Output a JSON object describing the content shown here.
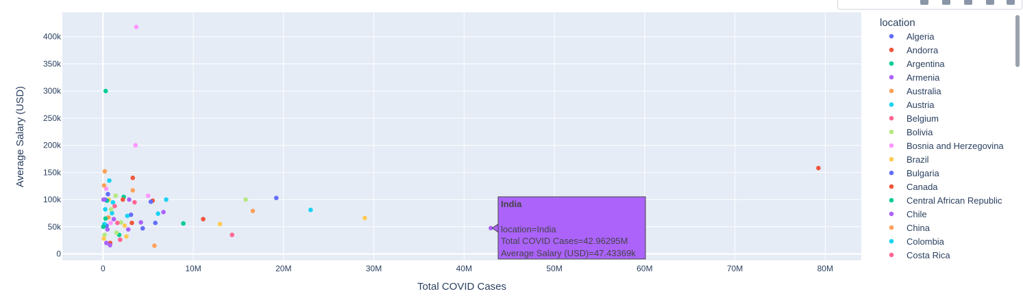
{
  "chart_data": {
    "type": "scatter",
    "xlabel": "Total COVID Cases",
    "ylabel": "Average Salary (USD)",
    "xlim": [
      -4500000,
      84000000
    ],
    "ylim": [
      -12000,
      445000
    ],
    "x_ticks": [
      0,
      10000000,
      20000000,
      30000000,
      40000000,
      50000000,
      60000000,
      70000000,
      80000000
    ],
    "x_tick_labels": [
      "0",
      "10M",
      "20M",
      "30M",
      "40M",
      "50M",
      "60M",
      "70M",
      "80M"
    ],
    "y_ticks": [
      0,
      50000,
      100000,
      150000,
      200000,
      250000,
      300000,
      350000,
      400000
    ],
    "y_tick_labels": [
      "0",
      "50k",
      "100k",
      "150k",
      "200k",
      "250k",
      "300k",
      "350k",
      "400k"
    ],
    "legend_title": "location",
    "legend": [
      {
        "name": "Algeria",
        "color": "#636EFA"
      },
      {
        "name": "Andorra",
        "color": "#EF553B"
      },
      {
        "name": "Argentina",
        "color": "#00CC96"
      },
      {
        "name": "Armenia",
        "color": "#AB63FA"
      },
      {
        "name": "Australia",
        "color": "#FFA15A"
      },
      {
        "name": "Austria",
        "color": "#19D3F3"
      },
      {
        "name": "Belgium",
        "color": "#FF6692"
      },
      {
        "name": "Bolivia",
        "color": "#B6E880"
      },
      {
        "name": "Bosnia and Herzegovina",
        "color": "#FF97FF"
      },
      {
        "name": "Brazil",
        "color": "#FECB52"
      },
      {
        "name": "Bulgaria",
        "color": "#636EFA"
      },
      {
        "name": "Canada",
        "color": "#EF553B"
      },
      {
        "name": "Central African Republic",
        "color": "#00CC96"
      },
      {
        "name": "Chile",
        "color": "#AB63FA"
      },
      {
        "name": "China",
        "color": "#FFA15A"
      },
      {
        "name": "Colombia",
        "color": "#19D3F3"
      },
      {
        "name": "Costa Rica",
        "color": "#FF6692"
      }
    ],
    "points": [
      {
        "x": 79250000,
        "y": 158000,
        "c": "#EF553B"
      },
      {
        "x": 42962950,
        "y": 47433,
        "c": "#AB63FA"
      },
      {
        "x": 29000000,
        "y": 66000,
        "c": "#FECB52"
      },
      {
        "x": 23000000,
        "y": 81000,
        "c": "#19D3F3"
      },
      {
        "x": 19200000,
        "y": 103000,
        "c": "#636EFA"
      },
      {
        "x": 16600000,
        "y": 79000,
        "c": "#FFA15A"
      },
      {
        "x": 15800000,
        "y": 100000,
        "c": "#B6E880"
      },
      {
        "x": 14300000,
        "y": 35000,
        "c": "#FF6692"
      },
      {
        "x": 12950000,
        "y": 55000,
        "c": "#FECB52"
      },
      {
        "x": 11100000,
        "y": 64000,
        "c": "#EF553B"
      },
      {
        "x": 8900000,
        "y": 56000,
        "c": "#00CC96"
      },
      {
        "x": 7000000,
        "y": 100000,
        "c": "#19D3F3"
      },
      {
        "x": 6700000,
        "y": 77000,
        "c": "#AB63FA"
      },
      {
        "x": 6100000,
        "y": 74000,
        "c": "#19D3F3"
      },
      {
        "x": 5800000,
        "y": 57000,
        "c": "#636EFA"
      },
      {
        "x": 5700000,
        "y": 15000,
        "c": "#FFA15A"
      },
      {
        "x": 5500000,
        "y": 98000,
        "c": "#EF553B"
      },
      {
        "x": 5300000,
        "y": 96000,
        "c": "#636EFA"
      },
      {
        "x": 5000000,
        "y": 107000,
        "c": "#FF97FF"
      },
      {
        "x": 4400000,
        "y": 47000,
        "c": "#636EFA"
      },
      {
        "x": 4200000,
        "y": 58000,
        "c": "#AB63FA"
      },
      {
        "x": 3700000,
        "y": 418000,
        "c": "#FF97FF"
      },
      {
        "x": 3600000,
        "y": 200000,
        "c": "#FF97FF"
      },
      {
        "x": 3500000,
        "y": 95000,
        "c": "#FF6692"
      },
      {
        "x": 3300000,
        "y": 140000,
        "c": "#EF553B"
      },
      {
        "x": 3300000,
        "y": 117000,
        "c": "#FFA15A"
      },
      {
        "x": 3200000,
        "y": 57000,
        "c": "#EF553B"
      },
      {
        "x": 3100000,
        "y": 72000,
        "c": "#636EFA"
      },
      {
        "x": 2900000,
        "y": 100000,
        "c": "#AB63FA"
      },
      {
        "x": 2800000,
        "y": 45000,
        "c": "#AB63FA"
      },
      {
        "x": 2700000,
        "y": 70000,
        "c": "#19D3F3"
      },
      {
        "x": 2600000,
        "y": 32000,
        "c": "#FECB52"
      },
      {
        "x": 2400000,
        "y": 52000,
        "c": "#FECB52"
      },
      {
        "x": 2300000,
        "y": 105000,
        "c": "#00CC96"
      },
      {
        "x": 2200000,
        "y": 100000,
        "c": "#EF553B"
      },
      {
        "x": 2000000,
        "y": 58000,
        "c": "#B6E880"
      },
      {
        "x": 1900000,
        "y": 26000,
        "c": "#FF6692"
      },
      {
        "x": 1800000,
        "y": 35000,
        "c": "#00CC96"
      },
      {
        "x": 1600000,
        "y": 57000,
        "c": "#FF6692"
      },
      {
        "x": 1500000,
        "y": 39000,
        "c": "#B6E880"
      },
      {
        "x": 1400000,
        "y": 107000,
        "c": "#B6E880"
      },
      {
        "x": 1300000,
        "y": 88000,
        "c": "#FF6692"
      },
      {
        "x": 1200000,
        "y": 64000,
        "c": "#AB63FA"
      },
      {
        "x": 1100000,
        "y": 95000,
        "c": "#19D3F3"
      },
      {
        "x": 1000000,
        "y": 75000,
        "c": "#19D3F3"
      },
      {
        "x": 900000,
        "y": 82000,
        "c": "#B6E880"
      },
      {
        "x": 850000,
        "y": 57000,
        "c": "#FF97FF"
      },
      {
        "x": 800000,
        "y": 20000,
        "c": "#EF553B"
      },
      {
        "x": 780000,
        "y": 16000,
        "c": "#AB63FA"
      },
      {
        "x": 700000,
        "y": 135000,
        "c": "#19D3F3"
      },
      {
        "x": 650000,
        "y": 100000,
        "c": "#FECB52"
      },
      {
        "x": 600000,
        "y": 67000,
        "c": "#FFA15A"
      },
      {
        "x": 550000,
        "y": 110000,
        "c": "#636EFA"
      },
      {
        "x": 500000,
        "y": 45000,
        "c": "#AB63FA"
      },
      {
        "x": 450000,
        "y": 98000,
        "c": "#00CC96"
      },
      {
        "x": 400000,
        "y": 52000,
        "c": "#636EFA"
      },
      {
        "x": 380000,
        "y": 20000,
        "c": "#AB63FA"
      },
      {
        "x": 350000,
        "y": 120000,
        "c": "#FF97FF"
      },
      {
        "x": 300000,
        "y": 300000,
        "c": "#00CC96"
      },
      {
        "x": 280000,
        "y": 65000,
        "c": "#00CC96"
      },
      {
        "x": 250000,
        "y": 82000,
        "c": "#19D3F3"
      },
      {
        "x": 220000,
        "y": 100000,
        "c": "#636EFA"
      },
      {
        "x": 200000,
        "y": 152000,
        "c": "#FFA15A"
      },
      {
        "x": 180000,
        "y": 35000,
        "c": "#B6E880"
      },
      {
        "x": 150000,
        "y": 55000,
        "c": "#19D3F3"
      },
      {
        "x": 120000,
        "y": 126000,
        "c": "#FFA15A"
      },
      {
        "x": 100000,
        "y": 28000,
        "c": "#FECB52"
      },
      {
        "x": 60000,
        "y": 100000,
        "c": "#AB63FA"
      },
      {
        "x": 40000,
        "y": 50000,
        "c": "#00CC96"
      }
    ],
    "hover": {
      "title": "India",
      "line1": "location=India",
      "line2": "Total COVID Cases=42.96295M",
      "line3": "Average Salary (USD)=47.43369k",
      "x": 42962950,
      "y": 47433,
      "color": "#AB63FA"
    }
  }
}
